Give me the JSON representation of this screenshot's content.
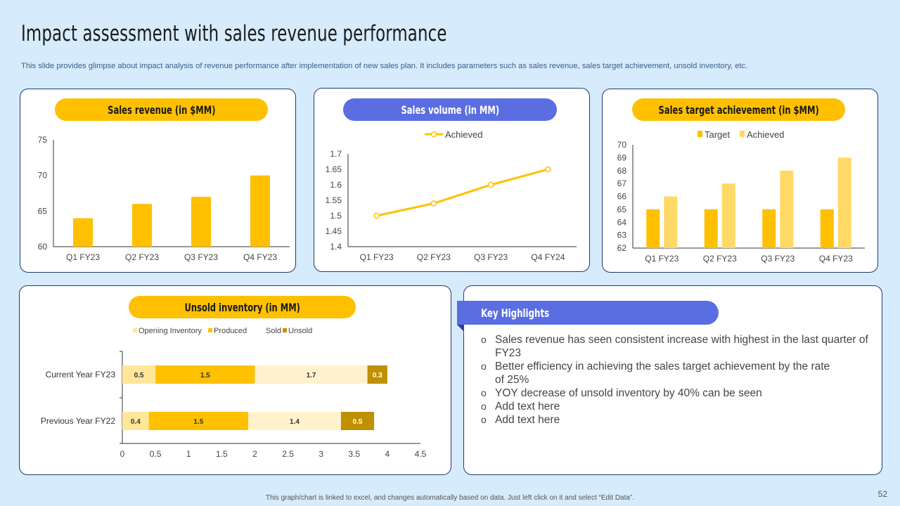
{
  "page": {
    "title": "Impact assessment with sales revenue performance",
    "subtitle": "This slide provides glimpse about impact analysis of revenue performance after implementation of new sales plan. It includes parameters such as sales revenue, sales target achievement, unsold inventory, etc.",
    "footnote": "This graph/chart is linked to excel, and changes automatically based on data. Just left click on it and select “Edit Data”.",
    "page_number": "52"
  },
  "colors": {
    "background": "#d6ebfb",
    "yellow": "#ffc000",
    "light_yellow": "#ffd966",
    "pale_yellow": "#fff2cc",
    "dark_gold": "#bf9000",
    "blue": "#5b6ee1",
    "panel_border": "#1f3b73"
  },
  "key_highlights": {
    "title": "Key Highlights",
    "items": [
      "Sales revenue has seen consistent increase with highest in the last quarter of FY23",
      "Better efficiency in achieving the sales target achievement by the rate of 25%",
      "YOY decrease of unsold inventory by 40% can be seen",
      "Add text here",
      "Add text here"
    ]
  },
  "chart_data": [
    {
      "type": "bar",
      "title": "Sales revenue (in $MM)",
      "categories": [
        "Q1 FY23",
        "Q2 FY23",
        "Q3 FY23",
        "Q4 FY23"
      ],
      "values": [
        64,
        66,
        67,
        70
      ],
      "ylim": [
        60,
        75
      ],
      "yticks": [
        60,
        65,
        70,
        75
      ],
      "color": "#ffc000",
      "grid": false
    },
    {
      "type": "line",
      "title": "Sales volume (in MM)",
      "categories": [
        "Q1 FY23",
        "Q2 FY23",
        "Q3 FY23",
        "Q4 FY24"
      ],
      "series": [
        {
          "name": "Achieved",
          "values": [
            1.5,
            1.54,
            1.6,
            1.65
          ]
        }
      ],
      "ylim": [
        1.4,
        1.7
      ],
      "yticks": [
        "1.4",
        "1.45",
        "1.5",
        "1.55",
        "1.6",
        "1.65",
        "1.7"
      ],
      "legend": "top",
      "color": "#ffc000",
      "grid": false
    },
    {
      "type": "bar",
      "title": "Sales target achievement (in $MM)",
      "categories": [
        "Q1 FY23",
        "Q2 FY23",
        "Q3 FY23",
        "Q4 FY23"
      ],
      "series": [
        {
          "name": "Target",
          "values": [
            65,
            65,
            65,
            65
          ],
          "color": "#ffc000"
        },
        {
          "name": "Achieved",
          "values": [
            66,
            67,
            68,
            69
          ],
          "color": "#ffd966"
        }
      ],
      "ylim": [
        62,
        70
      ],
      "yticks": [
        62,
        63,
        64,
        65,
        66,
        67,
        68,
        69,
        70
      ],
      "legend": "top",
      "grid": false
    },
    {
      "type": "bar",
      "orientation": "horizontal",
      "stacked": true,
      "title": "Unsold inventory (in MM)",
      "categories": [
        "Current Year FY23",
        "Previous Year FY22"
      ],
      "series": [
        {
          "name": "Opening Inventory",
          "values": [
            0.5,
            0.4
          ],
          "labels": [
            "0.5",
            "0.4"
          ],
          "color": "#ffe699"
        },
        {
          "name": "Produced",
          "values": [
            1.5,
            1.5
          ],
          "labels": [
            "1.5",
            "1.5"
          ],
          "color": "#ffc000"
        },
        {
          "name": "Sold",
          "values": [
            1.7,
            1.4
          ],
          "labels": [
            "1.7",
            "1.4"
          ],
          "color": "#fff2cc"
        },
        {
          "name": "Unsold",
          "values": [
            0.3,
            0.5
          ],
          "labels": [
            "0.3",
            "0.5"
          ],
          "color": "#bf9000"
        }
      ],
      "xlim": [
        0,
        4.5
      ],
      "xticks": [
        "0",
        "0.5",
        "1",
        "1.5",
        "2",
        "2.5",
        "3",
        "3.5",
        "4",
        "4.5"
      ],
      "legend": "top",
      "grid": false
    }
  ]
}
